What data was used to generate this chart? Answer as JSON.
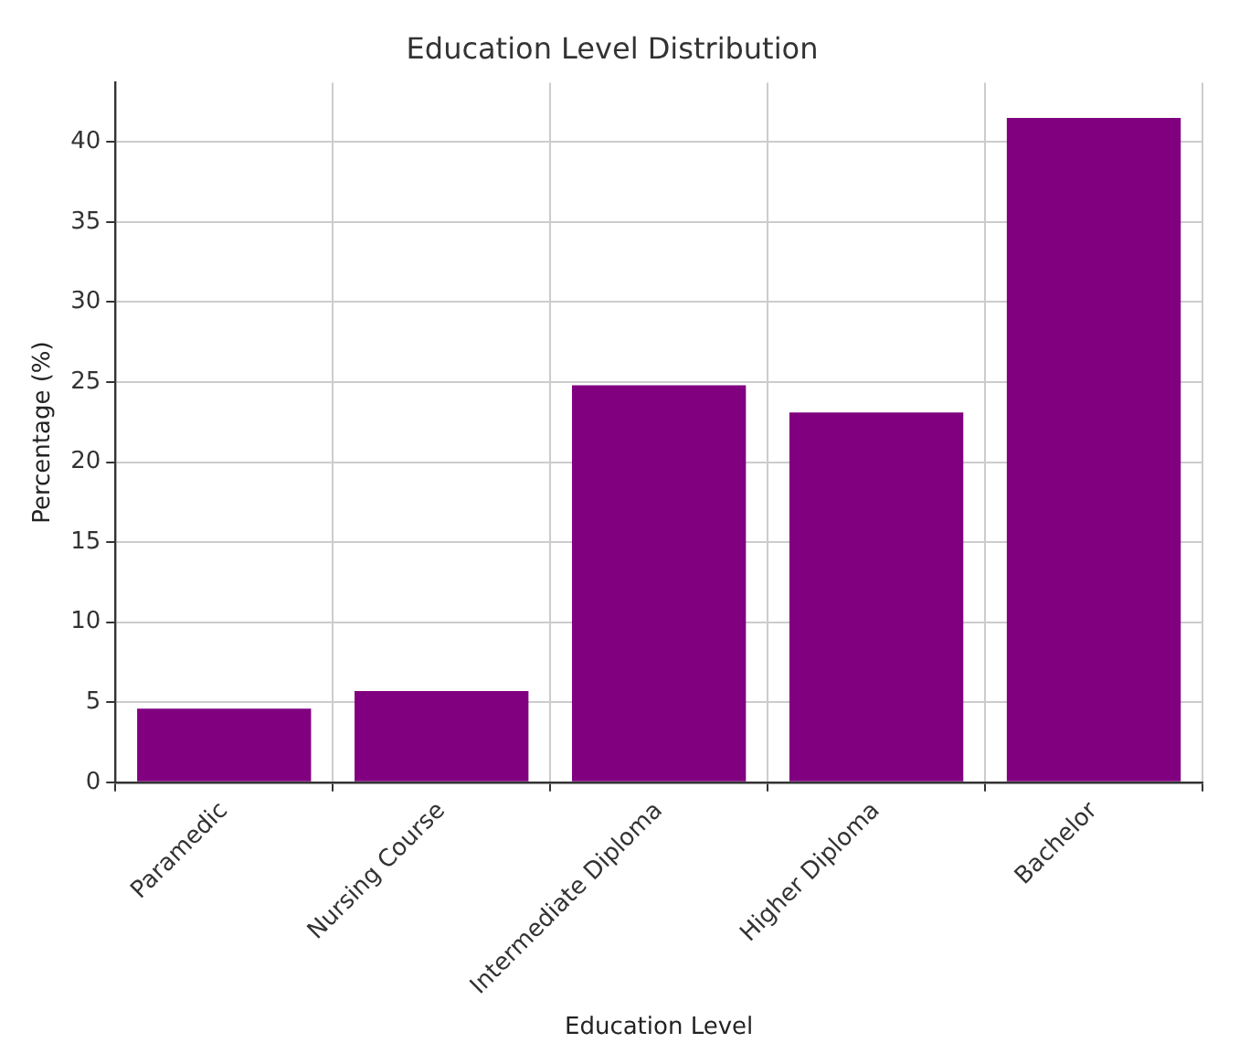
{
  "chart_data": {
    "type": "bar",
    "title": "Education Level Distribution",
    "xlabel": "Education Level",
    "ylabel": "Percentage (%)",
    "categories": [
      "Paramedic",
      "Nursing Course",
      "Intermediate Diploma",
      "Higher Diploma",
      "Bachelor"
    ],
    "values": [
      4.6,
      5.7,
      24.8,
      23.1,
      41.5
    ],
    "color": "#800080",
    "ylim": [
      0,
      43.7
    ],
    "yticks": [
      0,
      5,
      10,
      15,
      20,
      25,
      30,
      35,
      40
    ],
    "grid": true
  }
}
